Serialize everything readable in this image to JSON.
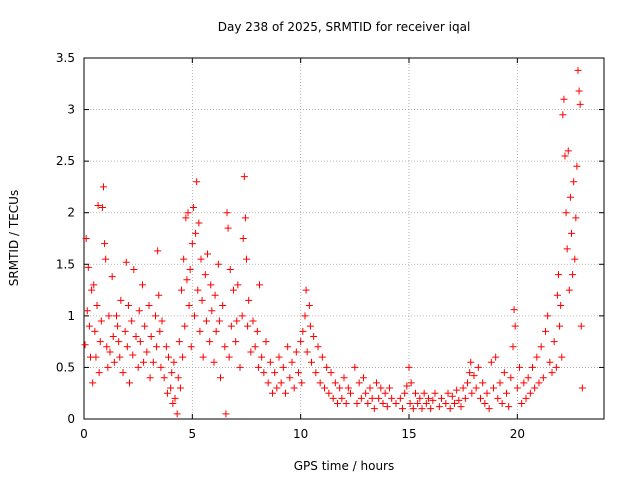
{
  "chart_data": {
    "type": "scatter",
    "title": "Day 238 of 2025, SRMTID for receiver iqal",
    "xlabel": "GPS time / hours",
    "ylabel": "SRMTID / TECUs",
    "xlim": [
      0,
      24
    ],
    "ylim": [
      0,
      3.5
    ],
    "xticks": [
      0,
      5,
      10,
      15,
      20
    ],
    "yticks": [
      0,
      0.5,
      1,
      1.5,
      2,
      2.5,
      3,
      3.5
    ],
    "grid": true,
    "marker": "+",
    "series_color": "#ff0000",
    "points": [
      [
        0.05,
        0.72
      ],
      [
        0.1,
        1.75
      ],
      [
        0.15,
        1.05
      ],
      [
        0.2,
        1.47
      ],
      [
        0.25,
        0.9
      ],
      [
        0.3,
        0.6
      ],
      [
        0.35,
        1.25
      ],
      [
        0.4,
        0.35
      ],
      [
        0.45,
        1.3
      ],
      [
        0.5,
        0.85
      ],
      [
        0.55,
        0.6
      ],
      [
        0.6,
        1.1
      ],
      [
        0.65,
        2.07
      ],
      [
        0.7,
        0.45
      ],
      [
        0.75,
        0.75
      ],
      [
        0.8,
        0.95
      ],
      [
        0.85,
        2.05
      ],
      [
        0.9,
        2.25
      ],
      [
        0.95,
        1.7
      ],
      [
        1.0,
        1.55
      ],
      [
        1.05,
        0.7
      ],
      [
        1.1,
        0.5
      ],
      [
        1.15,
        1.0
      ],
      [
        1.2,
        0.65
      ],
      [
        1.3,
        1.38
      ],
      [
        1.35,
        0.8
      ],
      [
        1.4,
        0.55
      ],
      [
        1.5,
        1.0
      ],
      [
        1.55,
        0.9
      ],
      [
        1.6,
        0.75
      ],
      [
        1.65,
        0.6
      ],
      [
        1.7,
        1.15
      ],
      [
        1.8,
        0.45
      ],
      [
        1.9,
        0.85
      ],
      [
        1.95,
        1.52
      ],
      [
        2.0,
        0.7
      ],
      [
        2.05,
        1.1
      ],
      [
        2.1,
        0.35
      ],
      [
        2.2,
        0.95
      ],
      [
        2.25,
        0.62
      ],
      [
        2.3,
        1.45
      ],
      [
        2.4,
        0.8
      ],
      [
        2.5,
        0.5
      ],
      [
        2.55,
        1.05
      ],
      [
        2.6,
        0.75
      ],
      [
        2.7,
        1.3
      ],
      [
        2.75,
        0.55
      ],
      [
        2.8,
        0.9
      ],
      [
        2.9,
        0.65
      ],
      [
        3.0,
        1.1
      ],
      [
        3.05,
        0.4
      ],
      [
        3.1,
        0.8
      ],
      [
        3.2,
        0.55
      ],
      [
        3.3,
        1.0
      ],
      [
        3.35,
        0.7
      ],
      [
        3.4,
        1.63
      ],
      [
        3.45,
        1.2
      ],
      [
        3.5,
        0.85
      ],
      [
        3.55,
        0.5
      ],
      [
        3.6,
        0.95
      ],
      [
        3.7,
        0.4
      ],
      [
        3.8,
        0.7
      ],
      [
        3.85,
        0.25
      ],
      [
        3.9,
        0.6
      ],
      [
        4.0,
        0.3
      ],
      [
        4.05,
        0.45
      ],
      [
        4.1,
        0.15
      ],
      [
        4.15,
        0.55
      ],
      [
        4.2,
        0.2
      ],
      [
        4.3,
        0.05
      ],
      [
        4.35,
        0.4
      ],
      [
        4.4,
        0.75
      ],
      [
        4.45,
        0.3
      ],
      [
        4.5,
        1.25
      ],
      [
        4.55,
        0.6
      ],
      [
        4.6,
        1.55
      ],
      [
        4.65,
        0.9
      ],
      [
        4.7,
        1.95
      ],
      [
        4.75,
        1.35
      ],
      [
        4.8,
        2.0
      ],
      [
        4.85,
        1.1
      ],
      [
        4.9,
        1.45
      ],
      [
        4.95,
        0.7
      ],
      [
        5.0,
        1.7
      ],
      [
        5.05,
        2.05
      ],
      [
        5.1,
        1.0
      ],
      [
        5.15,
        1.8
      ],
      [
        5.2,
        2.3
      ],
      [
        5.25,
        1.25
      ],
      [
        5.3,
        1.9
      ],
      [
        5.35,
        0.85
      ],
      [
        5.4,
        1.55
      ],
      [
        5.45,
        1.15
      ],
      [
        5.5,
        0.6
      ],
      [
        5.6,
        1.4
      ],
      [
        5.65,
        0.95
      ],
      [
        5.7,
        1.6
      ],
      [
        5.8,
        0.75
      ],
      [
        5.85,
        1.3
      ],
      [
        5.9,
        1.05
      ],
      [
        6.0,
        0.55
      ],
      [
        6.05,
        1.2
      ],
      [
        6.1,
        0.85
      ],
      [
        6.2,
        1.5
      ],
      [
        6.25,
        0.95
      ],
      [
        6.3,
        0.4
      ],
      [
        6.4,
        1.1
      ],
      [
        6.5,
        0.7
      ],
      [
        6.55,
        0.05
      ],
      [
        6.6,
        2.0
      ],
      [
        6.65,
        1.85
      ],
      [
        6.7,
        0.6
      ],
      [
        6.75,
        1.45
      ],
      [
        6.8,
        0.9
      ],
      [
        6.9,
        1.25
      ],
      [
        7.0,
        0.75
      ],
      [
        7.05,
        0.95
      ],
      [
        7.1,
        1.3
      ],
      [
        7.2,
        0.5
      ],
      [
        7.3,
        1.0
      ],
      [
        7.35,
        1.75
      ],
      [
        7.4,
        2.35
      ],
      [
        7.45,
        1.95
      ],
      [
        7.5,
        1.55
      ],
      [
        7.55,
        0.9
      ],
      [
        7.6,
        1.15
      ],
      [
        7.7,
        0.65
      ],
      [
        7.8,
        0.95
      ],
      [
        7.9,
        0.7
      ],
      [
        8.0,
        0.85
      ],
      [
        8.05,
        0.5
      ],
      [
        8.1,
        1.3
      ],
      [
        8.2,
        0.6
      ],
      [
        8.3,
        0.45
      ],
      [
        8.4,
        0.75
      ],
      [
        8.5,
        0.35
      ],
      [
        8.6,
        0.55
      ],
      [
        8.7,
        0.25
      ],
      [
        8.8,
        0.45
      ],
      [
        8.9,
        0.3
      ],
      [
        9.0,
        0.6
      ],
      [
        9.1,
        0.35
      ],
      [
        9.2,
        0.5
      ],
      [
        9.3,
        0.25
      ],
      [
        9.4,
        0.7
      ],
      [
        9.5,
        0.4
      ],
      [
        9.6,
        0.55
      ],
      [
        9.7,
        0.3
      ],
      [
        9.8,
        0.65
      ],
      [
        9.9,
        0.45
      ],
      [
        10.0,
        0.75
      ],
      [
        10.05,
        0.35
      ],
      [
        10.1,
        0.85
      ],
      [
        10.2,
        1.0
      ],
      [
        10.25,
        1.25
      ],
      [
        10.3,
        0.65
      ],
      [
        10.4,
        1.1
      ],
      [
        10.45,
        0.9
      ],
      [
        10.5,
        0.55
      ],
      [
        10.6,
        0.8
      ],
      [
        10.7,
        0.45
      ],
      [
        10.8,
        0.7
      ],
      [
        10.9,
        0.35
      ],
      [
        11.0,
        0.6
      ],
      [
        11.1,
        0.3
      ],
      [
        11.2,
        0.5
      ],
      [
        11.3,
        0.25
      ],
      [
        11.4,
        0.45
      ],
      [
        11.5,
        0.2
      ],
      [
        11.6,
        0.35
      ],
      [
        11.7,
        0.15
      ],
      [
        11.8,
        0.3
      ],
      [
        11.9,
        0.2
      ],
      [
        12.0,
        0.4
      ],
      [
        12.1,
        0.15
      ],
      [
        12.2,
        0.3
      ],
      [
        12.3,
        0.25
      ],
      [
        12.5,
        0.5
      ],
      [
        12.6,
        0.15
      ],
      [
        12.7,
        0.35
      ],
      [
        12.8,
        0.2
      ],
      [
        12.9,
        0.4
      ],
      [
        13.0,
        0.25
      ],
      [
        13.1,
        0.15
      ],
      [
        13.2,
        0.3
      ],
      [
        13.3,
        0.2
      ],
      [
        13.4,
        0.1
      ],
      [
        13.5,
        0.35
      ],
      [
        13.6,
        0.2
      ],
      [
        13.7,
        0.3
      ],
      [
        13.8,
        0.15
      ],
      [
        13.9,
        0.25
      ],
      [
        14.0,
        0.12
      ],
      [
        14.1,
        0.3
      ],
      [
        14.2,
        0.2
      ],
      [
        14.4,
        0.15
      ],
      [
        14.6,
        0.2
      ],
      [
        14.7,
        0.1
      ],
      [
        14.8,
        0.25
      ],
      [
        14.9,
        0.32
      ],
      [
        15.0,
        0.5
      ],
      [
        15.05,
        0.15
      ],
      [
        15.1,
        0.35
      ],
      [
        15.2,
        0.1
      ],
      [
        15.3,
        0.25
      ],
      [
        15.4,
        0.15
      ],
      [
        15.5,
        0.2
      ],
      [
        15.6,
        0.1
      ],
      [
        15.7,
        0.25
      ],
      [
        15.8,
        0.15
      ],
      [
        15.9,
        0.2
      ],
      [
        16.0,
        0.1
      ],
      [
        16.1,
        0.18
      ],
      [
        16.2,
        0.25
      ],
      [
        16.4,
        0.12
      ],
      [
        16.5,
        0.2
      ],
      [
        16.7,
        0.15
      ],
      [
        16.8,
        0.25
      ],
      [
        16.9,
        0.1
      ],
      [
        17.0,
        0.22
      ],
      [
        17.1,
        0.15
      ],
      [
        17.2,
        0.28
      ],
      [
        17.3,
        0.18
      ],
      [
        17.4,
        0.12
      ],
      [
        17.5,
        0.3
      ],
      [
        17.6,
        0.2
      ],
      [
        17.7,
        0.35
      ],
      [
        17.8,
        0.45
      ],
      [
        17.85,
        0.55
      ],
      [
        17.9,
        0.25
      ],
      [
        18.0,
        0.42
      ],
      [
        18.1,
        0.3
      ],
      [
        18.2,
        0.5
      ],
      [
        18.3,
        0.2
      ],
      [
        18.4,
        0.35
      ],
      [
        18.5,
        0.15
      ],
      [
        18.6,
        0.25
      ],
      [
        18.7,
        0.1
      ],
      [
        18.8,
        0.55
      ],
      [
        18.9,
        0.3
      ],
      [
        19.0,
        0.6
      ],
      [
        19.1,
        0.2
      ],
      [
        19.2,
        0.35
      ],
      [
        19.3,
        0.15
      ],
      [
        19.4,
        0.45
      ],
      [
        19.5,
        0.25
      ],
      [
        19.6,
        0.12
      ],
      [
        19.7,
        0.4
      ],
      [
        19.8,
        0.7
      ],
      [
        19.85,
        1.06
      ],
      [
        19.9,
        0.9
      ],
      [
        20.0,
        0.3
      ],
      [
        20.1,
        0.5
      ],
      [
        20.2,
        0.15
      ],
      [
        20.3,
        0.35
      ],
      [
        20.4,
        0.2
      ],
      [
        20.5,
        0.4
      ],
      [
        20.6,
        0.25
      ],
      [
        20.7,
        0.5
      ],
      [
        20.8,
        0.3
      ],
      [
        20.9,
        0.6
      ],
      [
        21.0,
        0.35
      ],
      [
        21.1,
        0.7
      ],
      [
        21.2,
        0.4
      ],
      [
        21.3,
        0.85
      ],
      [
        21.4,
        1.0
      ],
      [
        21.5,
        0.55
      ],
      [
        21.6,
        0.45
      ],
      [
        21.7,
        0.75
      ],
      [
        21.8,
        0.5
      ],
      [
        21.85,
        1.2
      ],
      [
        21.9,
        1.4
      ],
      [
        21.95,
        0.9
      ],
      [
        22.0,
        1.1
      ],
      [
        22.05,
        0.6
      ],
      [
        22.1,
        2.95
      ],
      [
        22.15,
        3.1
      ],
      [
        22.2,
        2.55
      ],
      [
        22.25,
        2.0
      ],
      [
        22.3,
        1.65
      ],
      [
        22.35,
        2.6
      ],
      [
        22.4,
        1.25
      ],
      [
        22.45,
        2.15
      ],
      [
        22.5,
        1.8
      ],
      [
        22.55,
        1.4
      ],
      [
        22.6,
        2.3
      ],
      [
        22.65,
        1.55
      ],
      [
        22.7,
        1.95
      ],
      [
        22.75,
        2.45
      ],
      [
        22.8,
        3.38
      ],
      [
        22.85,
        3.18
      ],
      [
        22.9,
        3.05
      ],
      [
        22.95,
        0.9
      ],
      [
        23.0,
        0.3
      ]
    ]
  }
}
